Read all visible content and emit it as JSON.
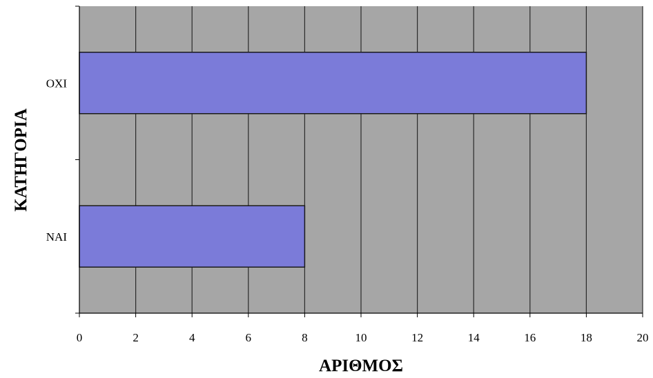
{
  "chart_data": {
    "type": "bar",
    "orientation": "horizontal",
    "categories": [
      "ΝΑΙ",
      "ΟΧΙ"
    ],
    "values": [
      8,
      18
    ],
    "xlabel": "ΑΡΙΘΜΟΣ",
    "ylabel": "ΚΑΤΗΓΟΡΙΑ",
    "xlim": [
      0,
      20
    ],
    "xticks": [
      "0",
      "2",
      "4",
      "6",
      "8",
      "10",
      "12",
      "14",
      "16",
      "18",
      "20"
    ],
    "grid": "vertical",
    "legend": "none",
    "colors": {
      "bar_fill": "#7b7bd9",
      "plot_background": "#a6a6a6",
      "gridline": "#2a2a2a",
      "bar_outline": "#1a1a1a"
    }
  }
}
